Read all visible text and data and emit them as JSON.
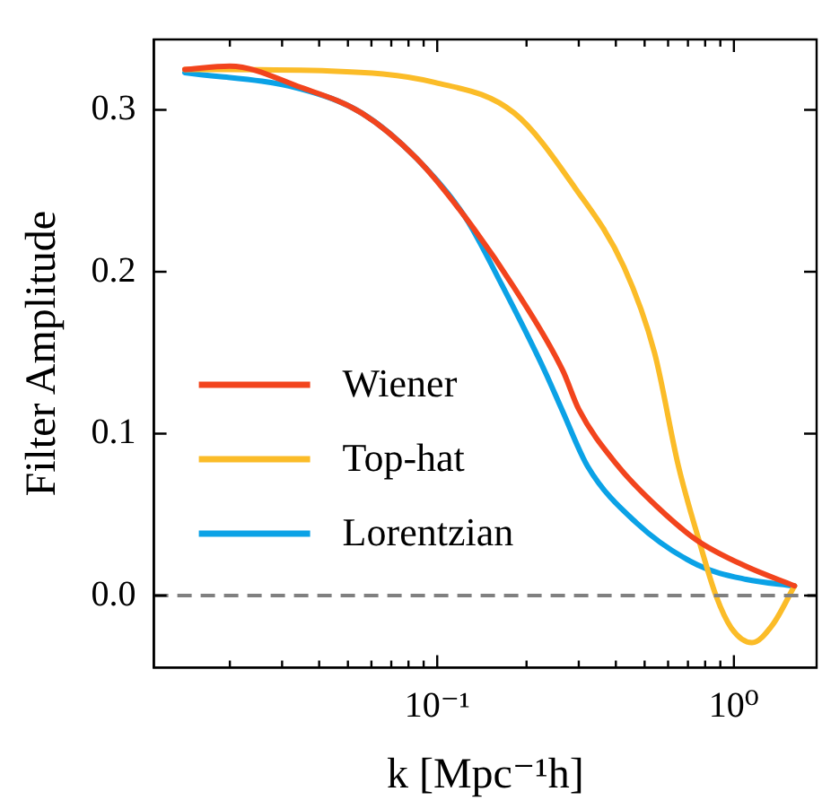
{
  "chart_data": {
    "type": "line",
    "xlabel": "k [Mpc⁻¹h]",
    "ylabel": "Filter Amplitude",
    "log": "x",
    "xlim": [
      0.0111,
      1.9
    ],
    "ylim": [
      -0.0445,
      0.3435
    ],
    "xticks": [
      {
        "value": 0.02,
        "label": null
      },
      {
        "value": 0.03,
        "label": null
      },
      {
        "value": 0.04,
        "label": null
      },
      {
        "value": 0.05,
        "label": null
      },
      {
        "value": 0.06,
        "label": null
      },
      {
        "value": 0.07,
        "label": null
      },
      {
        "value": 0.08,
        "label": null
      },
      {
        "value": 0.09,
        "label": null
      },
      {
        "value": 0.1,
        "label": "10⁻¹"
      },
      {
        "value": 0.2,
        "label": null
      },
      {
        "value": 0.3,
        "label": null
      },
      {
        "value": 0.4,
        "label": null
      },
      {
        "value": 0.5,
        "label": null
      },
      {
        "value": 0.6,
        "label": null
      },
      {
        "value": 0.7,
        "label": null
      },
      {
        "value": 0.8,
        "label": null
      },
      {
        "value": 0.9,
        "label": null
      },
      {
        "value": 1,
        "label": "10⁰"
      }
    ],
    "yticks": [
      {
        "value": 0,
        "label": "0.0"
      },
      {
        "value": 0.1,
        "label": "0.1"
      },
      {
        "value": 0.2,
        "label": "0.2"
      },
      {
        "value": 0.3,
        "label": "0.3"
      }
    ],
    "grid": false,
    "legend": "lower left",
    "marker": "none",
    "line_style": "solid",
    "ref_lines": [
      {
        "axis": "y",
        "value": 0,
        "color": "#808080",
        "line_style": "dashed"
      }
    ],
    "series": [
      {
        "name": "Wiener",
        "color": "#f2441d",
        "x": [
          0.0141,
          0.02,
          0.0346,
          0.0557,
          0.0852,
          0.124,
          0.182,
          0.265,
          0.3,
          0.407,
          0.55,
          0.753,
          1.1,
          1.6
        ],
        "values": [
          0.325,
          0.327,
          0.314,
          0.298,
          0.27,
          0.234,
          0.19,
          0.139,
          0.115,
          0.08,
          0.055,
          0.034,
          0.018,
          0.006
        ]
      },
      {
        "name": "Top-hat",
        "color": "#fbbc28",
        "x": [
          0.0141,
          0.044,
          0.098,
          0.182,
          0.291,
          0.426,
          0.54,
          0.65,
          0.76,
          0.87,
          0.98,
          1.15,
          1.35,
          1.6
        ],
        "values": [
          0.325,
          0.324,
          0.317,
          0.298,
          0.252,
          0.203,
          0.15,
          0.08,
          0.035,
          0.0,
          -0.02,
          -0.029,
          -0.018,
          0.006
        ]
      },
      {
        "name": "Lorentzian",
        "color": "#0ba2e6",
        "x": [
          0.0141,
          0.0346,
          0.0557,
          0.0852,
          0.124,
          0.165,
          0.23,
          0.263,
          0.321,
          0.469,
          0.753,
          1.1,
          1.6
        ],
        "values": [
          0.323,
          0.313,
          0.298,
          0.27,
          0.234,
          0.192,
          0.139,
          0.115,
          0.08,
          0.045,
          0.019,
          0.01,
          0.006
        ]
      }
    ]
  }
}
